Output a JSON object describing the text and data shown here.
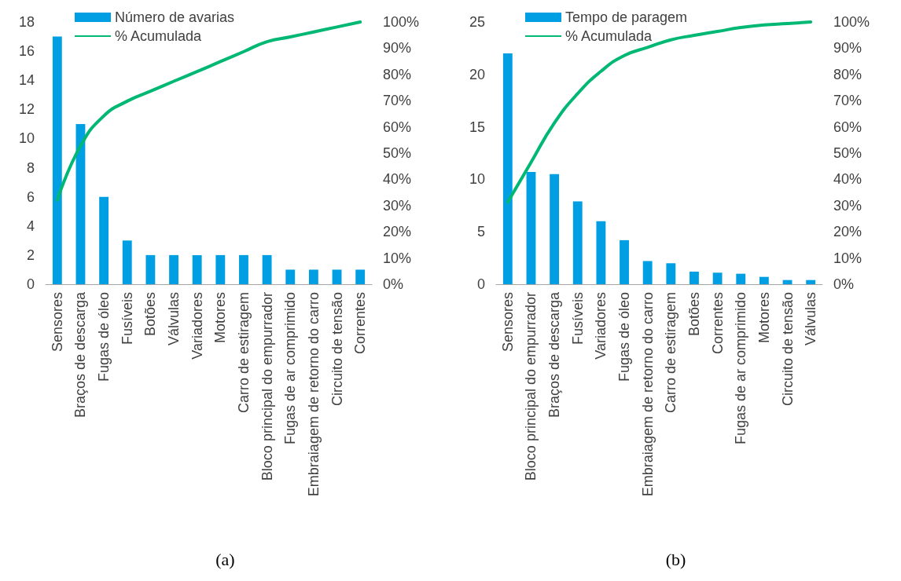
{
  "chart_data": [
    {
      "type": "bar",
      "categories": [
        "Sensores",
        "Braços de descarga",
        "Fugas de óleo",
        "Fusíveis",
        "Botões",
        "Válvulas",
        "Variadores",
        "Motores",
        "Carro de estiragem",
        "Bloco principal do empurrador",
        "Fugas de ar comprimido",
        "Embraiagem de retorno do carro",
        "Circuito de tensão",
        "Correntes"
      ],
      "series": [
        {
          "name": "Número de avarias",
          "color": "#009fe3",
          "values": [
            17,
            11,
            6,
            3,
            2,
            2,
            2,
            2,
            2,
            2,
            1,
            1,
            1,
            1
          ]
        },
        {
          "name": "% Acumulada",
          "type": "line",
          "axis": "y2",
          "color": "#00b874",
          "values": [
            32.1,
            52.8,
            64.2,
            69.8,
            73.6,
            77.4,
            81.1,
            84.9,
            88.7,
            92.5,
            94.3,
            96.2,
            98.1,
            100
          ]
        }
      ],
      "ylim": [
        0,
        18
      ],
      "yticks": [
        0,
        2,
        4,
        6,
        8,
        10,
        12,
        14,
        16,
        18
      ],
      "y2lim": [
        0,
        100
      ],
      "y2ticks": [
        {
          "value": 0,
          "label": "0%"
        },
        {
          "value": 10,
          "label": "10%"
        },
        {
          "value": 20,
          "label": "20%"
        },
        {
          "value": 30,
          "label": "30%"
        },
        {
          "value": 40,
          "label": "40%"
        },
        {
          "value": 50,
          "label": "50%"
        },
        {
          "value": 60,
          "label": "60%"
        },
        {
          "value": 70,
          "label": "70%"
        },
        {
          "value": 80,
          "label": "80%"
        },
        {
          "value": 90,
          "label": "90%"
        },
        {
          "value": 100,
          "label": "100%"
        }
      ],
      "grid": false,
      "legend": "top left",
      "annotations": [
        "(a)"
      ]
    },
    {
      "type": "bar",
      "categories": [
        "Sensores",
        "Bloco principal do empurrador",
        "Braços de descarga",
        "Fusíveis",
        "Variadores",
        "Fugas de óleo",
        "Embraiagem de retorno do carro",
        "Carro de estiragem",
        "Botões",
        "Correntes",
        "Fugas de ar comprimido",
        "Motores",
        "Circuito de tensão",
        "Válvulas"
      ],
      "series": [
        {
          "name": "Tempo de paragem",
          "color": "#009fe3",
          "values": [
            22,
            10.7,
            10.5,
            7.9,
            6,
            4.2,
            2.2,
            2,
            1.2,
            1.1,
            1,
            0.7,
            0.4,
            0.4
          ]
        },
        {
          "name": "% Acumulada",
          "type": "line",
          "axis": "y2",
          "color": "#00b874",
          "values": [
            31.3,
            46.5,
            61.5,
            72.7,
            81.2,
            87.2,
            90.3,
            93.2,
            94.9,
            96.4,
            97.9,
            98.9,
            99.4,
            100
          ]
        }
      ],
      "ylim": [
        0,
        25
      ],
      "yticks": [
        0,
        5,
        10,
        15,
        20,
        25
      ],
      "y2lim": [
        0,
        100
      ],
      "y2ticks": [
        {
          "value": 0,
          "label": "0%"
        },
        {
          "value": 10,
          "label": "10%"
        },
        {
          "value": 20,
          "label": "20%"
        },
        {
          "value": 30,
          "label": "30%"
        },
        {
          "value": 40,
          "label": "40%"
        },
        {
          "value": 50,
          "label": "50%"
        },
        {
          "value": 60,
          "label": "60%"
        },
        {
          "value": 70,
          "label": "70%"
        },
        {
          "value": 80,
          "label": "80%"
        },
        {
          "value": 90,
          "label": "90%"
        },
        {
          "value": 100,
          "label": "100%"
        }
      ],
      "grid": false,
      "legend": "top left",
      "annotations": [
        "(b)"
      ]
    }
  ]
}
